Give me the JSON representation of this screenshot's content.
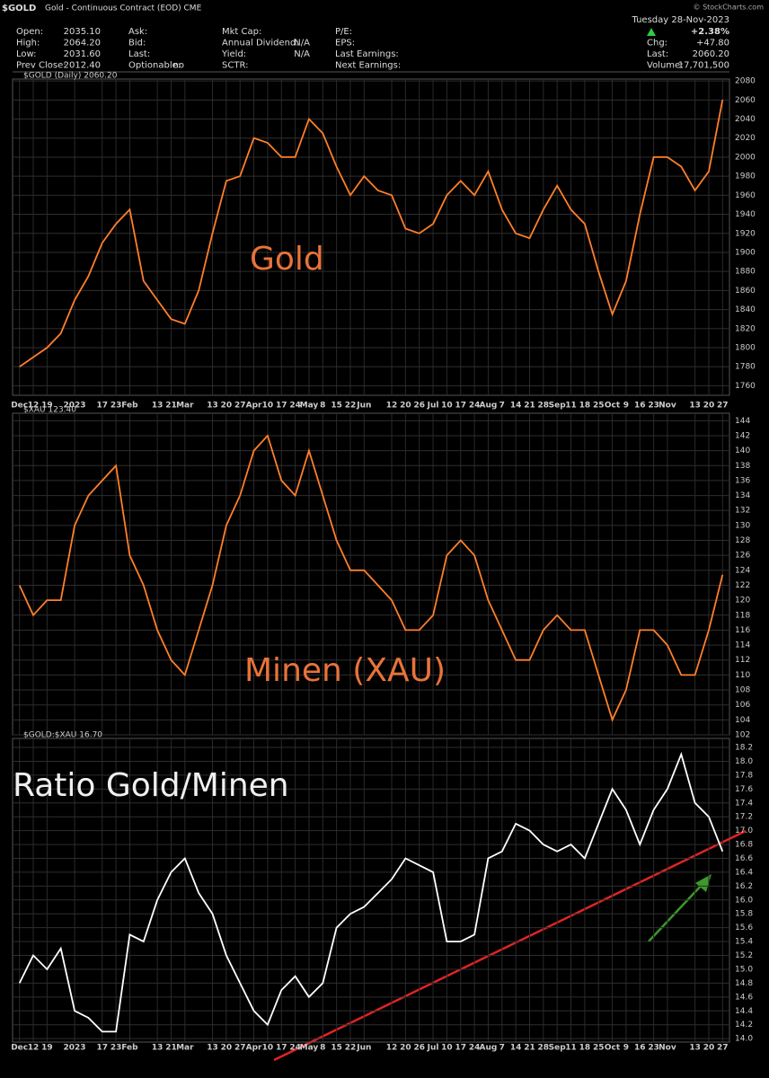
{
  "header": {
    "title": "$GOLD",
    "subtitle": "Gold - Continuous Contract (EOD) CME",
    "copyright": "© StockCharts.com",
    "columns": [
      [
        [
          "Open:",
          "2035.10"
        ],
        [
          "High:",
          "2064.20"
        ],
        [
          "Low:",
          "2031.60"
        ],
        [
          "Prev Close:",
          "2012.40"
        ]
      ],
      [
        [
          "Ask:"
        ],
        [
          "Bid:"
        ],
        [
          "Last:"
        ],
        [
          "Optionable:",
          "no"
        ]
      ],
      [
        [
          "Mkt Cap:"
        ],
        [
          "Annual Dividend:",
          "N/A"
        ],
        [
          "Yield:",
          "N/A"
        ],
        [
          "SCTR:"
        ]
      ],
      [
        [
          "P/E:"
        ],
        [
          "EPS:"
        ],
        [
          "Last Earnings:"
        ],
        [
          "Next Earnings:"
        ]
      ]
    ],
    "date": "Tuesday 28-Nov-2023",
    "change_pct": "+2.38%",
    "right": [
      [
        "Chg:",
        "+47.80"
      ],
      [
        "Last:",
        "2060.20"
      ],
      [
        "Volume:",
        "17,701,500"
      ]
    ]
  },
  "chart_data": [
    {
      "type": "line",
      "title": "$GOLD (Daily) 2060.20",
      "annotation": "Gold",
      "color": "#ff7f2a",
      "grid": true,
      "categories": [
        "Dec",
        "12",
        "19",
        null,
        "2023",
        null,
        "17",
        "23",
        "Feb",
        null,
        "13",
        "21",
        "Mar",
        null,
        "13",
        "20",
        "27",
        "Apr",
        "10",
        "17",
        "24",
        "May",
        "8",
        "15",
        "22",
        "Jun",
        null,
        "12",
        "20",
        "26",
        "Jul",
        "10",
        "17",
        "24",
        "Aug",
        "7",
        "14",
        "21",
        "28",
        "Sep",
        "11",
        "18",
        "25",
        "Oct",
        "9",
        "16",
        "23",
        "Nov",
        null,
        "13",
        "20",
        "27"
      ],
      "values": [
        1780,
        1790,
        1800,
        1815,
        1850,
        1875,
        1910,
        1930,
        1945,
        1870,
        1850,
        1830,
        1825,
        1860,
        1920,
        1975,
        1980,
        2020,
        2015,
        2000,
        2000,
        2040,
        2025,
        1990,
        1960,
        1980,
        1965,
        1960,
        1925,
        1920,
        1930,
        1960,
        1975,
        1960,
        1985,
        1945,
        1920,
        1915,
        1945,
        1970,
        1945,
        1930,
        1880,
        1835,
        1870,
        1940,
        2000,
        2000,
        1990,
        1965,
        1985,
        2060.2
      ],
      "ylim": [
        1750,
        2082
      ],
      "yticks": [
        1760,
        1780,
        1800,
        1820,
        1840,
        1860,
        1880,
        1900,
        1920,
        1940,
        1960,
        1980,
        2000,
        2020,
        2040,
        2060,
        2080
      ]
    },
    {
      "type": "line",
      "title": "$XAU 123.40",
      "annotation": "Minen (XAU)",
      "color": "#ff7f2a",
      "grid": true,
      "values": [
        122,
        118,
        120,
        120,
        130,
        134,
        136,
        138,
        126,
        122,
        116,
        112,
        110,
        116,
        122,
        130,
        134,
        140,
        142,
        136,
        134,
        140,
        134,
        128,
        124,
        124,
        122,
        120,
        116,
        116,
        118,
        126,
        128,
        126,
        120,
        116,
        112,
        112,
        116,
        118,
        116,
        116,
        110,
        104,
        108,
        116,
        116,
        114,
        110,
        110,
        116,
        123.4
      ],
      "ylim": [
        102,
        145
      ],
      "yticks": [
        102,
        104,
        106,
        108,
        110,
        112,
        114,
        116,
        118,
        120,
        122,
        124,
        126,
        128,
        130,
        132,
        134,
        136,
        138,
        140,
        142,
        144
      ]
    },
    {
      "type": "line",
      "title": "$GOLD:$XAU 16.70",
      "annotation": "Ratio Gold/Minen",
      "color": "#ffffff",
      "grid": true,
      "categories": [
        "Dec",
        "12",
        "19",
        null,
        "2023",
        null,
        "17",
        "23",
        "Feb",
        null,
        "13",
        "21",
        "Mar",
        null,
        "13",
        "20",
        "27",
        "Apr",
        "10",
        "17",
        "24",
        "May",
        "8",
        "15",
        "22",
        "Jun",
        null,
        "12",
        "20",
        "26",
        "Jul",
        "10",
        "17",
        "24",
        "Aug",
        "7",
        "14",
        "21",
        "28",
        "Sep",
        "11",
        "18",
        "25",
        "Oct",
        "9",
        "16",
        "23",
        "Nov",
        null,
        "13",
        "20",
        "27"
      ],
      "values": [
        14.8,
        15.2,
        15,
        15.3,
        14.4,
        14.3,
        14.1,
        14.1,
        15.5,
        15.4,
        16,
        16.4,
        16.6,
        16.1,
        15.8,
        15.2,
        14.8,
        14.4,
        14.2,
        14.7,
        14.9,
        14.6,
        14.8,
        15.6,
        15.8,
        15.9,
        16.1,
        16.3,
        16.6,
        16.5,
        16.4,
        15.4,
        15.4,
        15.5,
        16.6,
        16.7,
        17.1,
        17,
        16.8,
        16.7,
        16.8,
        16.6,
        17.1,
        17.6,
        17.3,
        16.8,
        17.3,
        17.6,
        18.1,
        17.4,
        17.2,
        16.7
      ],
      "ylim": [
        13.95,
        18.33
      ],
      "yticks": [
        {
          "value": 14,
          "label": "14.0"
        },
        14.2,
        14.4,
        14.6,
        14.8,
        {
          "value": 15,
          "label": "15.0"
        },
        15.2,
        15.4,
        15.6,
        15.8,
        {
          "value": 16,
          "label": "16.0"
        },
        16.2,
        16.4,
        16.6,
        16.8,
        {
          "value": 17,
          "label": "17.0"
        },
        17.2,
        17.4,
        17.6,
        17.8,
        {
          "value": 18,
          "label": "18.0"
        },
        18.2
      ]
    }
  ]
}
